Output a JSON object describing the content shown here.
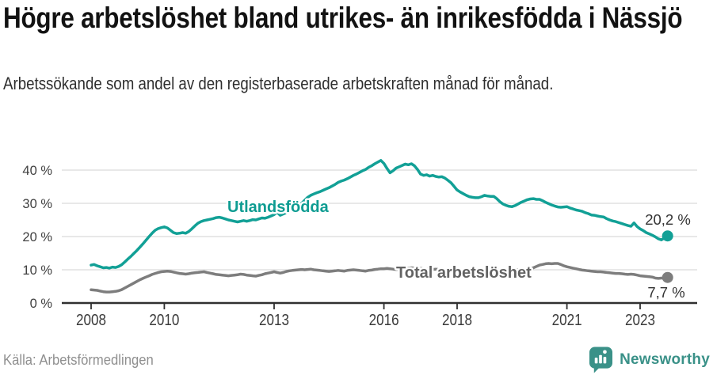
{
  "header": {
    "title": "Högre arbetslöshet bland utrikes- än inrikesfödda i Nässjö",
    "subtitle": "Arbetssökande som andel av den registerbaserade arbetskraften månad för månad."
  },
  "footer": {
    "source": "Källa: Arbetsförmedlingen",
    "brand": "Newsworthy"
  },
  "colors": {
    "line_foreign_born": "#12A096",
    "label_foreign_born": "#0E9C92",
    "line_total": "#7D7D7D",
    "label_total": "#636363",
    "end_label_text": "#333333",
    "axis": "#2F2F2F",
    "gridline": "#DADADA",
    "brand_teal": "#3A9188"
  },
  "chart_data": {
    "type": "line",
    "title": "Högre arbetslöshet bland utrikes- än inrikesfödda i Nässjö",
    "subtitle": "Arbetssökande som andel av den registerbaserade arbetskraften månad för månad.",
    "unit": "%",
    "frequency": "monthly",
    "x_start": "2008-01",
    "x_end": "2023-10",
    "x_start_year": 2008,
    "ylim": [
      0,
      45
    ],
    "grid": true,
    "legend_position": "inline-labels",
    "x_ticks": [
      {
        "year": 2008,
        "label": "2008"
      },
      {
        "year": 2010,
        "label": "2010"
      },
      {
        "year": 2013,
        "label": "2013"
      },
      {
        "year": 2016,
        "label": "2016"
      },
      {
        "year": 2018,
        "label": "2018"
      },
      {
        "year": 2021,
        "label": "2021"
      },
      {
        "year": 2023,
        "label": "2023"
      }
    ],
    "y_ticks": [
      {
        "value": 0,
        "label": "0 %"
      },
      {
        "value": 10,
        "label": "10 %"
      },
      {
        "value": 20,
        "label": "20 %"
      },
      {
        "value": 30,
        "label": "30 %"
      },
      {
        "value": 40,
        "label": "40 %"
      }
    ],
    "series": [
      {
        "name": "Utlandsfödda",
        "color": "#12A096",
        "label_color": "#0E9C92",
        "end_label": "20,2 %",
        "end_value": 20.2,
        "values": [
          11.4,
          11.6,
          11.2,
          10.9,
          10.6,
          10.7,
          10.5,
          10.8,
          10.7,
          11.0,
          11.5,
          12.3,
          13.2,
          14.0,
          14.9,
          15.8,
          16.8,
          17.8,
          18.9,
          20.0,
          21.0,
          21.9,
          22.4,
          22.7,
          22.9,
          22.6,
          21.9,
          21.2,
          20.9,
          21.0,
          21.2,
          21.0,
          21.5,
          22.3,
          23.2,
          24.0,
          24.5,
          24.8,
          25.0,
          25.2,
          25.4,
          25.7,
          25.8,
          25.6,
          25.3,
          25.0,
          24.8,
          24.6,
          24.4,
          24.6,
          24.8,
          24.6,
          24.8,
          25.1,
          25.0,
          25.3,
          25.6,
          25.5,
          25.8,
          26.2,
          26.6,
          27.3,
          26.4,
          26.8,
          27.2,
          27.6,
          28.0,
          28.5,
          29.2,
          30.0,
          30.9,
          31.8,
          32.4,
          32.8,
          33.2,
          33.5,
          33.9,
          34.3,
          34.7,
          35.2,
          35.7,
          36.3,
          36.7,
          37.0,
          37.4,
          37.9,
          38.4,
          38.8,
          39.3,
          39.8,
          40.2,
          40.8,
          41.3,
          41.9,
          42.4,
          42.9,
          42.0,
          40.5,
          39.2,
          39.8,
          40.6,
          41.0,
          41.4,
          41.8,
          41.6,
          41.9,
          41.3,
          40.2,
          38.8,
          38.4,
          38.6,
          38.2,
          38.4,
          38.1,
          37.9,
          38.0,
          37.6,
          36.9,
          36.2,
          35.1,
          34.0,
          33.4,
          32.9,
          32.4,
          32.0,
          31.8,
          31.7,
          31.7,
          32.0,
          32.4,
          32.2,
          32.1,
          32.1,
          31.4,
          30.5,
          29.8,
          29.4,
          29.1,
          29.0,
          29.3,
          29.8,
          30.3,
          30.7,
          31.1,
          31.3,
          31.4,
          31.2,
          31.2,
          30.8,
          30.3,
          29.9,
          29.5,
          29.2,
          28.9,
          28.8,
          28.9,
          29.0,
          28.6,
          28.3,
          28.0,
          27.8,
          27.6,
          27.2,
          26.9,
          26.5,
          26.4,
          26.2,
          26.0,
          25.9,
          25.4,
          25.0,
          24.7,
          24.5,
          24.2,
          23.9,
          23.6,
          23.3,
          23.1,
          24.1,
          23.0,
          22.3,
          21.8,
          21.2,
          20.8,
          20.4,
          19.9,
          19.3,
          19.0,
          19.6,
          20.2
        ]
      },
      {
        "name": "Total arbetslöshet",
        "color": "#7D7D7D",
        "label_color": "#636363",
        "end_label": "7,7 %",
        "end_value": 7.7,
        "values": [
          4.0,
          3.9,
          3.8,
          3.6,
          3.4,
          3.3,
          3.3,
          3.4,
          3.5,
          3.7,
          4.0,
          4.5,
          5.0,
          5.5,
          6.0,
          6.5,
          7.0,
          7.4,
          7.8,
          8.2,
          8.6,
          8.9,
          9.2,
          9.4,
          9.5,
          9.6,
          9.5,
          9.3,
          9.1,
          8.9,
          8.8,
          8.7,
          8.8,
          9.0,
          9.1,
          9.2,
          9.3,
          9.4,
          9.2,
          9.0,
          8.8,
          8.6,
          8.5,
          8.4,
          8.3,
          8.2,
          8.3,
          8.4,
          8.5,
          8.7,
          8.6,
          8.4,
          8.3,
          8.2,
          8.1,
          8.3,
          8.5,
          8.8,
          9.0,
          9.2,
          9.4,
          9.2,
          9.0,
          9.2,
          9.5,
          9.7,
          9.8,
          9.9,
          10.0,
          10.1,
          10.0,
          10.1,
          10.2,
          10.0,
          9.9,
          9.8,
          9.7,
          9.6,
          9.5,
          9.6,
          9.7,
          9.8,
          9.7,
          9.6,
          9.8,
          9.9,
          10.0,
          9.9,
          9.8,
          9.7,
          9.6,
          9.8,
          9.9,
          10.1,
          10.2,
          10.3,
          10.3,
          10.4,
          10.3,
          10.2,
          10.1,
          10.2,
          10.3,
          10.4,
          10.5,
          10.6,
          10.5,
          10.4,
          10.4,
          10.3,
          10.2,
          10.2,
          10.1,
          10.2,
          10.1,
          10.0,
          10.0,
          9.9,
          9.9,
          10.0,
          9.9,
          9.8,
          9.8,
          9.7,
          9.7,
          9.8,
          9.7,
          9.6,
          9.7,
          9.6,
          9.7,
          9.7,
          9.8,
          9.9,
          9.8,
          9.9,
          10.0,
          9.9,
          10.0,
          10.1,
          10.0,
          10.1,
          10.1,
          10.2,
          10.4,
          10.6,
          11.0,
          11.4,
          11.6,
          11.8,
          11.9,
          11.8,
          11.9,
          11.9,
          11.6,
          11.2,
          10.9,
          10.7,
          10.5,
          10.3,
          10.1,
          9.9,
          9.8,
          9.7,
          9.6,
          9.5,
          9.4,
          9.4,
          9.3,
          9.2,
          9.1,
          9.0,
          8.9,
          8.9,
          8.8,
          8.7,
          8.6,
          8.7,
          8.6,
          8.4,
          8.2,
          8.1,
          8.0,
          7.9,
          7.8,
          7.5,
          7.4,
          7.5,
          7.5,
          7.7
        ]
      }
    ],
    "source": "Källa: Arbetsförmedlingen"
  }
}
